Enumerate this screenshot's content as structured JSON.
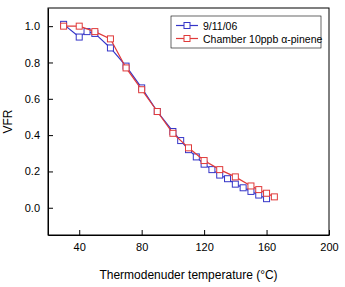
{
  "chart_data": {
    "type": "line",
    "x_label": "Thermodenuder temperature (°C)",
    "y_label": "VFR",
    "xlim": [
      20,
      200
    ],
    "ylim": [
      -0.15,
      1.1
    ],
    "xticks": [
      40,
      80,
      120,
      160,
      200
    ],
    "yticks": [
      {
        "value": 0,
        "label": "0.0"
      },
      0.2,
      0.4,
      0.6,
      0.8,
      {
        "value": 1,
        "label": "1.0"
      }
    ],
    "legend": "top-right",
    "grid": false,
    "series": [
      {
        "name": "9/11/06",
        "color": "#3535c8",
        "marker": "square",
        "line_style": "solid",
        "x": [
          30,
          40,
          45,
          50,
          60,
          70,
          80,
          90,
          100,
          105,
          110,
          115,
          120,
          125,
          130,
          135,
          140,
          145,
          150,
          155,
          160
        ],
        "values": [
          1.01,
          0.94,
          0.97,
          0.96,
          0.88,
          0.78,
          0.66,
          0.53,
          0.42,
          0.37,
          0.32,
          0.28,
          0.24,
          0.21,
          0.18,
          0.16,
          0.13,
          0.11,
          0.09,
          0.07,
          0.05
        ]
      },
      {
        "name": "Chamber 10ppb α-pinene",
        "color": "#e03a3a",
        "marker": "square",
        "line_style": "solid",
        "x": [
          30,
          40,
          50,
          60,
          70,
          80,
          90,
          100,
          110,
          120,
          130,
          140,
          150,
          155,
          160,
          165
        ],
        "values": [
          1.0,
          1.0,
          0.97,
          0.93,
          0.77,
          0.65,
          0.53,
          0.41,
          0.33,
          0.26,
          0.21,
          0.17,
          0.12,
          0.1,
          0.08,
          0.06
        ]
      }
    ]
  }
}
